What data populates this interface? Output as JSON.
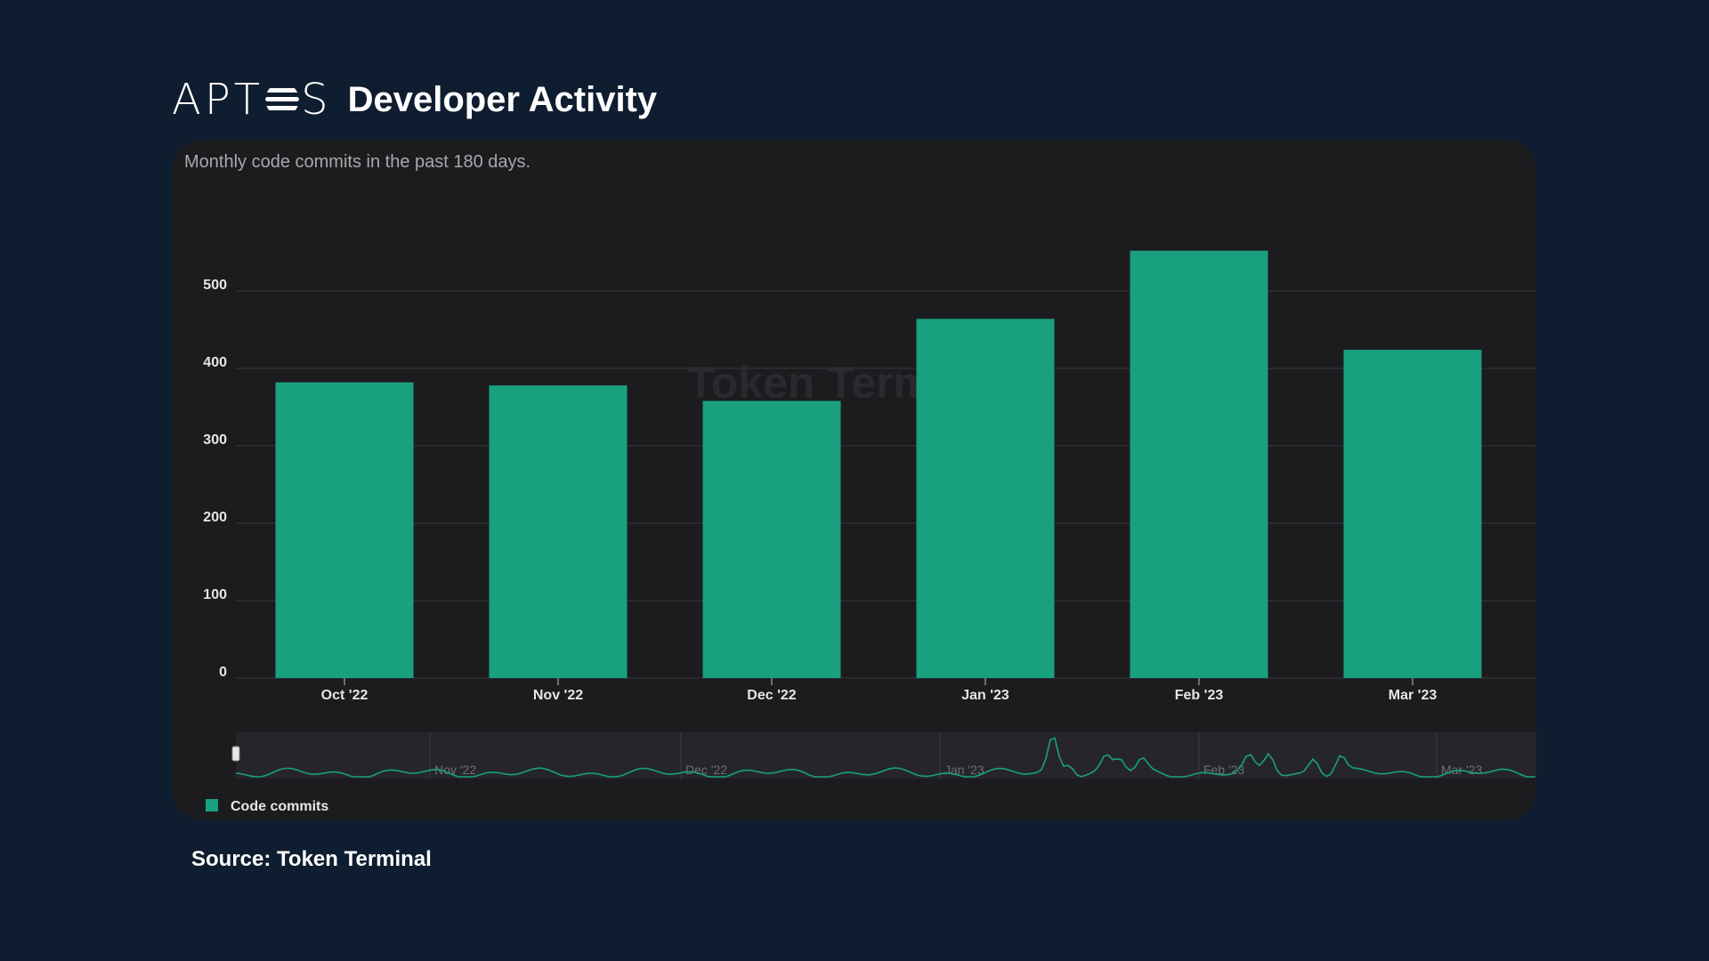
{
  "header": {
    "logo_text": "APTOS",
    "title": "Developer Activity"
  },
  "chart": {
    "subtitle": "Monthly code commits in the past 180 days.",
    "watermark": "Token Terminal",
    "legend_label": "Code commits"
  },
  "colors": {
    "background": "#0f1d30",
    "card": "#1c1c1f",
    "bar": "#18a07f",
    "gridline": "#2e2e33",
    "axis_text": "#e6e6e6"
  },
  "chart_data": {
    "type": "bar",
    "title": "",
    "subtitle": "Monthly code commits in the past 180 days.",
    "xlabel": "",
    "ylabel": "",
    "categories": [
      "Oct '22",
      "Nov '22",
      "Dec '22",
      "Jan '23",
      "Feb '23",
      "Mar '23"
    ],
    "series": [
      {
        "name": "Code commits",
        "values": [
          382,
          378,
          358,
          464,
          552,
          424
        ]
      }
    ],
    "yticks": [
      0,
      100,
      200,
      300,
      400,
      500
    ],
    "ylim": [
      0,
      560
    ],
    "grid": true,
    "legend": "bottom-left",
    "navigator": {
      "labels": [
        "Nov '22",
        "Dec '22",
        "Jan '23",
        "Feb '23",
        "Mar '23"
      ]
    }
  },
  "source": "Source: Token Terminal"
}
